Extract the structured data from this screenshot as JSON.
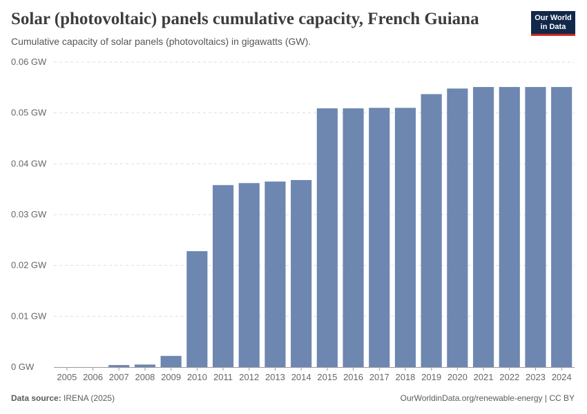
{
  "header": {
    "title": "Solar (photovoltaic) panels cumulative capacity, French Guiana",
    "subtitle": "Cumulative capacity of solar panels (photovoltaics) in gigawatts (GW)."
  },
  "logo": {
    "line1": "Our World",
    "line2": "in Data"
  },
  "footer": {
    "source_label": "Data source:",
    "source_value": "IRENA (2025)",
    "url": "OurWorldinData.org/renewable-energy",
    "separator": " | ",
    "license": "CC BY"
  },
  "colors": {
    "bar": "#6d87b0",
    "grid": "#dddddd",
    "axis": "#999999",
    "tick_text": "#666666"
  },
  "chart_data": {
    "type": "bar",
    "title": "Solar (photovoltaic) panels cumulative capacity, French Guiana",
    "xlabel": "",
    "ylabel": "GW",
    "categories": [
      "2005",
      "2006",
      "2007",
      "2008",
      "2009",
      "2010",
      "2011",
      "2012",
      "2013",
      "2014",
      "2015",
      "2016",
      "2017",
      "2018",
      "2019",
      "2020",
      "2021",
      "2022",
      "2023",
      "2024"
    ],
    "values": [
      0,
      0,
      0.0004,
      0.0005,
      0.0022,
      0.0228,
      0.0358,
      0.0362,
      0.0365,
      0.0368,
      0.0509,
      0.0509,
      0.051,
      0.051,
      0.0537,
      0.0548,
      0.0551,
      0.0551,
      0.0551,
      0.0551
    ],
    "ylim": [
      0,
      0.06
    ],
    "yticks": [
      0,
      0.01,
      0.02,
      0.03,
      0.04,
      0.05,
      0.06
    ],
    "ytick_labels": [
      "0 GW",
      "0.01 GW",
      "0.02 GW",
      "0.03 GW",
      "0.04 GW",
      "0.05 GW",
      "0.06 GW"
    ],
    "grid": true
  }
}
